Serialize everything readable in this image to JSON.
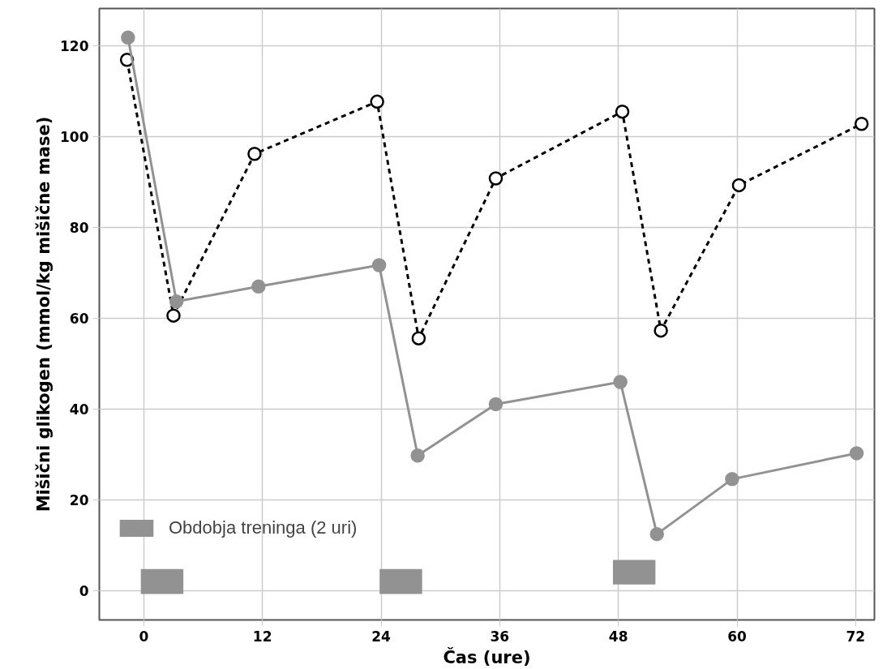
{
  "chart_data": {
    "type": "line",
    "xlabel": "Čas (ure)",
    "ylabel": "Mišični glikogen (mmol/kg mišične mase)",
    "xlim": [
      -4.5,
      73.9
    ],
    "ylim": [
      -6.4,
      128.2
    ],
    "xticks": [
      0,
      12,
      24,
      36,
      48,
      60,
      72
    ],
    "yticks": [
      0,
      20,
      40,
      60,
      80,
      100,
      120
    ],
    "grid": true,
    "legend": "bottom left",
    "marker": "circle",
    "series": [
      {
        "color": "#000000",
        "line_style": "dashed",
        "x": [
          -1.7,
          3.0,
          11.2,
          23.6,
          27.8,
          35.6,
          48.4,
          52.3,
          60.2,
          72.6
        ],
        "values": [
          116.9,
          60.6,
          96.2,
          107.7,
          55.6,
          90.8,
          105.5,
          57.3,
          89.3,
          102.8
        ]
      },
      {
        "color": "#929292",
        "line_style": "solid",
        "x": [
          -1.6,
          3.3,
          11.6,
          23.8,
          27.7,
          35.6,
          48.2,
          51.9,
          59.5,
          72.1
        ],
        "values": [
          121.8,
          63.7,
          67.0,
          71.7,
          29.8,
          41.1,
          46.0,
          12.5,
          24.6,
          30.3
        ]
      },
      {
        "type": "bar",
        "name": "Obdobja treninga (2 uri)",
        "color": "#929292",
        "x": [
          1.85,
          26.0,
          49.6
        ],
        "base": [
          -0.7,
          -0.7,
          1.4
        ],
        "values": [
          5.5,
          5.5,
          5.4
        ]
      }
    ]
  }
}
